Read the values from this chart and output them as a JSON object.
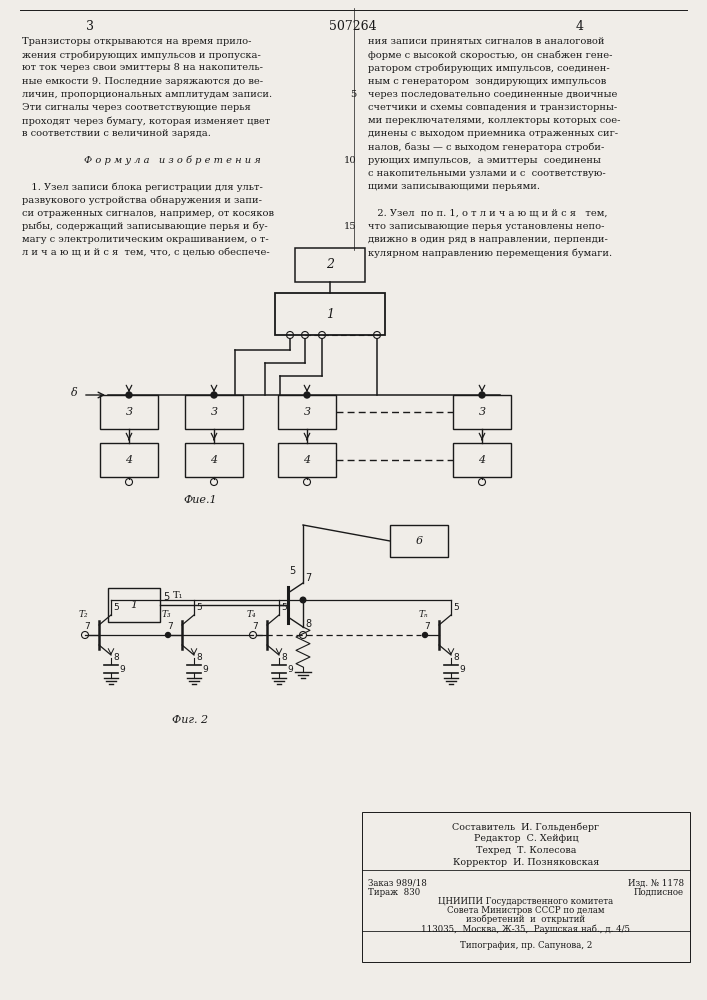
{
  "patent_number": "507264",
  "page_numbers": [
    "3",
    "4"
  ],
  "background_color": "#f0ede8",
  "text_color": "#1a1a1a",
  "col1_text": [
    "Транзисторы открываются на время прило-",
    "жения стробирующих импульсов и пропуска-",
    "ют ток через свои эмиттеры 8 на накопитель-",
    "ные емкости 9. Последние заряжаются до ве-",
    "личин, пропорциональных амплитудам записи.",
    "Эти сигналы через соответствующие перья",
    "проходят через бумагу, которая изменяет цвет",
    "в соответствии с величиной заряда.",
    "",
    "Ф о р м у л а   и з о б р е т е н и я",
    "",
    "   1. Узел записи блока регистрации для ульт-",
    "развукового устройства обнаружения и запи-",
    "си отраженных сигналов, например, от косяков",
    "рыбы, содержащий записывающие перья и бу-",
    "магу с электролитическим окрашиванием, о т-",
    "л и ч а ю щ и й с я  тем, что, с целью обеспече-"
  ],
  "col2_text": [
    "ния записи принятых сигналов в аналоговой",
    "форме с высокой скоростью, он снабжен гене-",
    "ратором стробирующих импульсов, соединен-",
    "ным с генератором  зондирующих импульсов",
    "через последовательно соединенные двоичные",
    "счетчики и схемы совпадения и транзисторны-",
    "ми переключателями, коллекторы которых сое-",
    "динены с выходом приемника отраженных сиг-",
    "налов, базы — с выходом генератора строби-",
    "рующих импульсов,  а эмиттеры  соединены",
    "с накопительными узлами и с  соответствую-",
    "щими записывающими перьями.",
    "",
    "   2. Узел  по п. 1, о т л и ч а ю щ и й с я   тем,",
    "что записывающие перья установлены непо-",
    "движно в один ряд в направлении, перпенди-",
    "кулярном направлению перемещения бумаги."
  ],
  "lineno_5": "5",
  "lineno_10": "10",
  "lineno_15": "15",
  "fig1_label": "Фuе.1",
  "fig2_label": "Фиг. 2",
  "author_line": "Составитель  И. Гольденберг",
  "editor_line": "Редактор  С. Хейфиц",
  "tech_line": "Техред  Т. Колесова",
  "corrector_line": "Корректор  И. Позняковская",
  "order_left": "Заказ 989/18",
  "order_right": "Изд. № 1178",
  "print_left": "Тираж  830",
  "print_right": "Подписное",
  "org_line1": "ЦНИИПИ Государственного комитета",
  "org_line2": "Совета Министров СССР по делам",
  "org_line3": "изобретений  и  открытий",
  "org_line4": "113035,  Москва, Ж-35,  Раушская наб., д. 4/5",
  "print_org": "Типография, пр. Сапунова, 2"
}
